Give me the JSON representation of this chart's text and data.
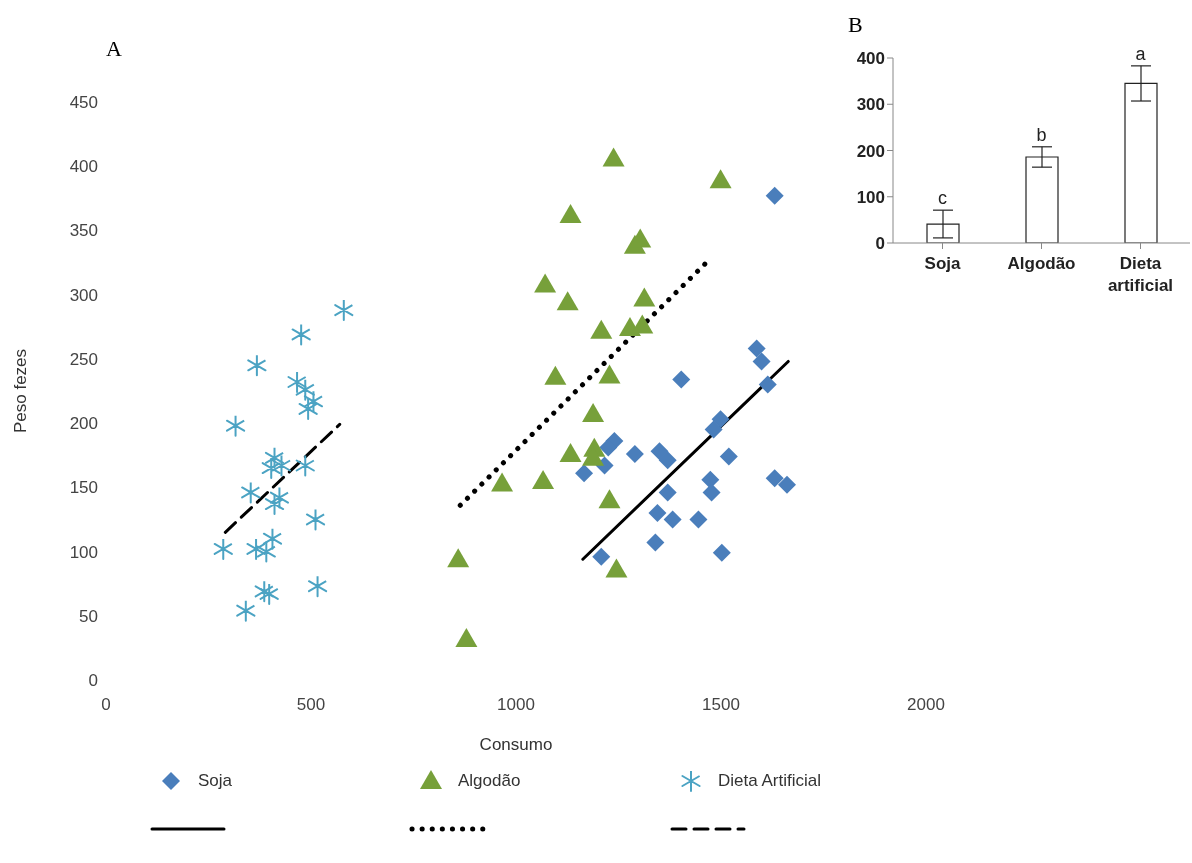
{
  "chart_data": [
    {
      "type": "scatter",
      "title": "A",
      "xlabel": "Consumo",
      "ylabel": "Peso fezes",
      "xlim": [
        0,
        2000
      ],
      "xticks": [
        0,
        500,
        1000,
        1500,
        2000
      ],
      "ylim": [
        0,
        450
      ],
      "yticks": [
        0,
        50,
        100,
        150,
        200,
        250,
        300,
        350,
        400,
        450
      ],
      "legend": "bottom",
      "series": [
        {
          "name": "Soja",
          "color": "#4a7ebb",
          "marker": "diamond",
          "x": [
            1631,
            1587,
            1599,
            1614,
            1403,
            1499,
            1482,
            1519,
            1631,
            1661,
            1474,
            1477,
            1240,
            1225,
            1290,
            1350,
            1370,
            1166,
            1216,
            1370,
            1345,
            1382,
            1445,
            1340,
            1502,
            1208
          ],
          "values": [
            377,
            258,
            248,
            230,
            234,
            203,
            195,
            174,
            157,
            152,
            156,
            146,
            186,
            181,
            176,
            178,
            171,
            161,
            167,
            146,
            130,
            125,
            125,
            107,
            99,
            96
          ]
        },
        {
          "name": "Algodão",
          "color": "#77a03a",
          "marker": "triangle",
          "x": [
            1238,
            1499,
            1133,
            1290,
            1303,
            1071,
            1126,
            1313,
            1278,
            1308,
            1208,
            1096,
            1228,
            1188,
            1133,
            1191,
            1188,
            966,
            1066,
            1228,
            859,
            1245,
            879
          ],
          "values": [
            406,
            389,
            362,
            338,
            343,
            308,
            294,
            297,
            274,
            276,
            272,
            236,
            237,
            207,
            176,
            180,
            173,
            153,
            155,
            140,
            94,
            86,
            32
          ]
        },
        {
          "name": "Dieta Artificial",
          "color": "#4ba3c3",
          "marker": "cross",
          "x": [
            580,
            476,
            368,
            466,
            486,
            506,
            493,
            316,
            411,
            428,
            403,
            486,
            353,
            423,
            411,
            511,
            286,
            366,
            406,
            391,
            386,
            398,
            516,
            341
          ],
          "values": [
            288,
            269,
            245,
            232,
            226,
            217,
            211,
            198,
            173,
            167,
            165,
            167,
            146,
            142,
            137,
            125,
            102,
            102,
            110,
            100,
            69,
            67,
            73,
            54
          ]
        },
        {
          "type": "line",
          "color": "#000000",
          "line_style": "solid",
          "x": [
            1163,
            1664
          ],
          "values": [
            94,
            248
          ]
        },
        {
          "type": "line",
          "color": "#000000",
          "line_style": "dotted",
          "x": [
            864,
            1477
          ],
          "values": [
            136,
            329
          ]
        },
        {
          "type": "line",
          "color": "#000000",
          "line_style": "dashed",
          "x": [
            291,
            570
          ],
          "values": [
            115,
            199
          ]
        }
      ]
    },
    {
      "type": "bar",
      "title": "B",
      "categories": [
        "Soja",
        "Algodão",
        "Dieta artificial"
      ],
      "values": [
        41,
        186,
        345
      ],
      "color": "#ffffff",
      "errors": [
        30,
        22,
        38
      ],
      "ylim": [
        0,
        400
      ],
      "yticks": [
        0,
        100,
        200,
        300,
        400
      ],
      "annotations": [
        {
          "text": "c",
          "x": "Soja",
          "y": 71
        },
        {
          "text": "b",
          "x": "Algodão",
          "y": 208
        },
        {
          "text": "a",
          "x": "Dieta artificial",
          "y": 383
        }
      ]
    }
  ]
}
